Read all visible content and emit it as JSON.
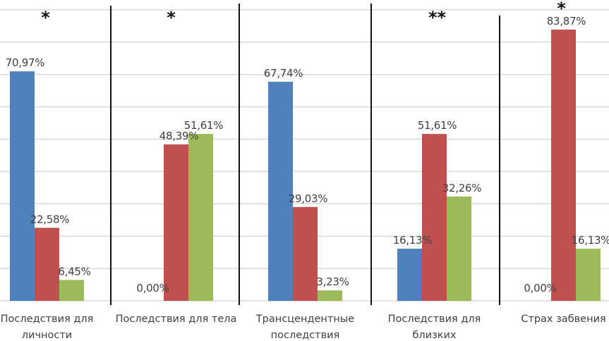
{
  "chart_data": {
    "type": "bar",
    "title": "",
    "xlabel": "",
    "ylabel": "",
    "ylim": [
      0,
      90
    ],
    "grid": true,
    "legend": "none",
    "categories": [
      [
        "Последствия для",
        "личности"
      ],
      [
        "Последствия для тела"
      ],
      [
        "Трансцендентные",
        "последствия"
      ],
      [
        "Последствия для",
        "близких"
      ],
      [
        "Страх забвения"
      ]
    ],
    "series": [
      {
        "color": "#4F81BD",
        "values": [
          70.97,
          0.0,
          67.74,
          16.13,
          0.0
        ],
        "labels": [
          "70,97%",
          "0,00%",
          "67,74%",
          "16,13%",
          "0,00%"
        ]
      },
      {
        "color": "#C0504D",
        "values": [
          22.58,
          48.39,
          29.03,
          51.61,
          83.87
        ],
        "labels": [
          "22,58%",
          "48,39%",
          "29,03%",
          "51,61%",
          "83,87%"
        ]
      },
      {
        "color": "#9BBB59",
        "values": [
          6.45,
          51.61,
          3.23,
          32.26,
          16.13
        ],
        "labels": [
          "6,45%",
          "51,61%",
          "3,23%",
          "32,26%",
          "16,13%"
        ]
      }
    ],
    "annotations": [
      "*",
      "*",
      "",
      "**",
      "*"
    ]
  }
}
